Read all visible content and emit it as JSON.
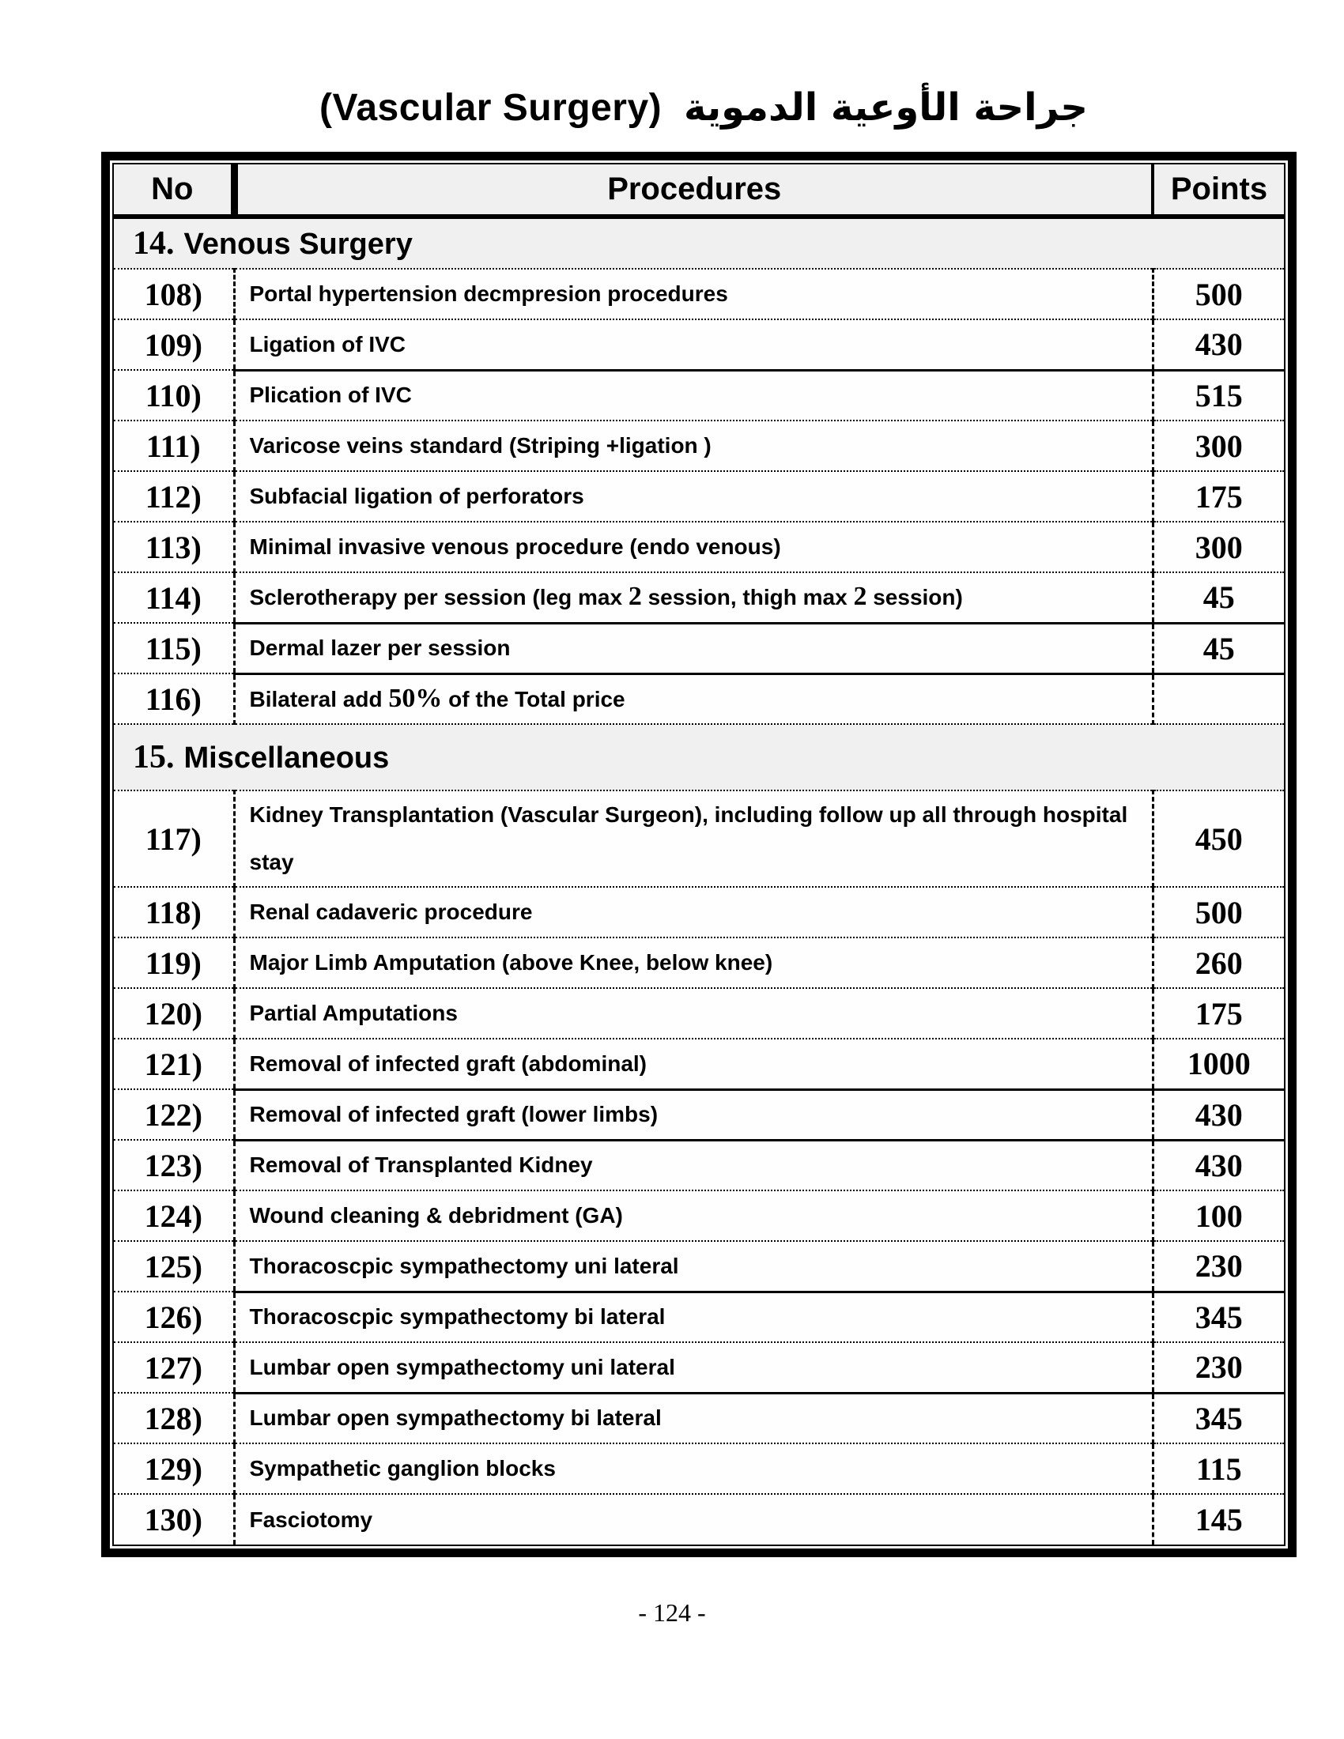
{
  "title": {
    "en": "(Vascular Surgery)",
    "ar": "جراحة الأوعية الدموية"
  },
  "table": {
    "headers": {
      "no": "No",
      "procedures": "Procedures",
      "points": "Points"
    },
    "sections": [
      {
        "number": "14.",
        "name": "Venous Surgery",
        "rows": [
          {
            "no": "108)",
            "procedure": "Portal hypertension decmpresion procedures",
            "points": "500"
          },
          {
            "no": "109)",
            "procedure": "Ligation of IVC",
            "points": "430"
          },
          {
            "no": "110)",
            "procedure": "Plication of IVC",
            "points": "515"
          },
          {
            "no": "111)",
            "procedure": "Varicose veins standard (Striping +ligation )",
            "points": "300"
          },
          {
            "no": "112)",
            "procedure": "Subfacial ligation of perforators",
            "points": "175"
          },
          {
            "no": "113)",
            "procedure": "Minimal invasive venous procedure (endo venous)",
            "points": "300"
          },
          {
            "no": "114)",
            "procedure": "Sclerotherapy per session (leg max 2 session, thigh max 2 session)",
            "points": "45"
          },
          {
            "no": "115)",
            "procedure": "Dermal lazer per session",
            "points": "45"
          },
          {
            "no": "116)",
            "procedure": "Bilateral add 50% of the Total price",
            "points": ""
          }
        ]
      },
      {
        "number": "15.",
        "name": "Miscellaneous",
        "rows": [
          {
            "no": "117)",
            "procedure": "Kidney Transplantation (Vascular Surgeon), including follow up all through hospital stay",
            "points": "450"
          },
          {
            "no": "118)",
            "procedure": "Renal cadaveric procedure",
            "points": "500"
          },
          {
            "no": "119)",
            "procedure": "Major Limb Amputation (above Knee, below knee)",
            "points": "260"
          },
          {
            "no": "120)",
            "procedure": "Partial Amputations",
            "points": "175"
          },
          {
            "no": "121)",
            "procedure": "Removal of infected graft (abdominal)",
            "points": "1000"
          },
          {
            "no": "122)",
            "procedure": "Removal of infected graft (lower limbs)",
            "points": "430"
          },
          {
            "no": "123)",
            "procedure": "Removal of Transplanted Kidney",
            "points": "430"
          },
          {
            "no": "124)",
            "procedure": "Wound cleaning & debridment (GA)",
            "points": "100"
          },
          {
            "no": "125)",
            "procedure": "Thoracoscpic sympathectomy uni lateral",
            "points": "230"
          },
          {
            "no": "126)",
            "procedure": "Thoracoscpic sympathectomy bi lateral",
            "points": "345"
          },
          {
            "no": "127)",
            "procedure": "Lumbar open sympathectomy uni lateral",
            "points": "230"
          },
          {
            "no": "128)",
            "procedure": "Lumbar open sympathectomy bi lateral",
            "points": "345"
          },
          {
            "no": "129)",
            "procedure": "Sympathetic ganglion blocks",
            "points": "115"
          },
          {
            "no": "130)",
            "procedure": "Fasciotomy",
            "points": "145"
          }
        ]
      }
    ]
  },
  "footer": {
    "page_number": "- 124 -"
  }
}
